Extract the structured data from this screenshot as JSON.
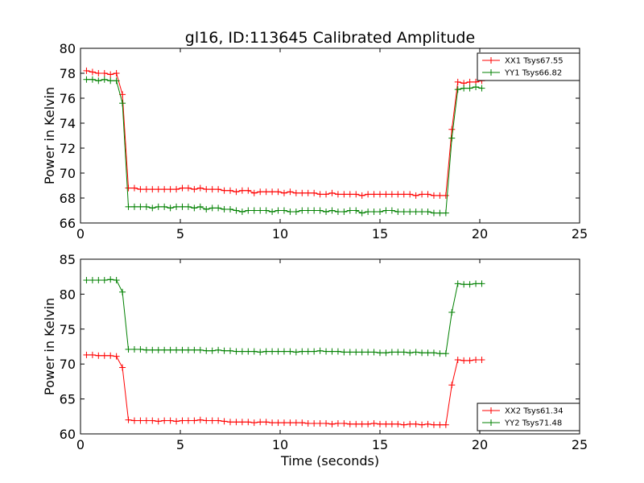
{
  "figure": {
    "title": "gl16, ID:113645 Calibrated Amplitude",
    "xlabel": "Time (seconds)"
  },
  "colors": {
    "red": "#ff0000",
    "green": "#008000"
  },
  "chart_data": [
    {
      "type": "line",
      "title": "gl16, ID:113645 Calibrated Amplitude",
      "xlabel": "",
      "ylabel": "Power in Kelvin",
      "xlim": [
        0,
        25
      ],
      "ylim": [
        66,
        80
      ],
      "xticks": [
        0,
        5,
        10,
        15,
        20,
        25
      ],
      "yticks": [
        66,
        68,
        70,
        72,
        74,
        76,
        78,
        80
      ],
      "grid": false,
      "legend_position": "top-right",
      "x": [
        0.3,
        0.6,
        0.9,
        1.2,
        1.5,
        1.8,
        2.1,
        2.4,
        2.7,
        3.0,
        3.3,
        3.6,
        3.9,
        4.2,
        4.5,
        4.8,
        5.1,
        5.4,
        5.7,
        6.0,
        6.3,
        6.6,
        6.9,
        7.2,
        7.5,
        7.8,
        8.1,
        8.4,
        8.7,
        9.0,
        9.3,
        9.6,
        9.9,
        10.2,
        10.5,
        10.8,
        11.1,
        11.4,
        11.7,
        12.0,
        12.3,
        12.6,
        12.9,
        13.2,
        13.5,
        13.8,
        14.1,
        14.4,
        14.7,
        15.0,
        15.3,
        15.6,
        15.9,
        16.2,
        16.5,
        16.8,
        17.1,
        17.4,
        17.7,
        18.0,
        18.3,
        18.6,
        18.9,
        19.2,
        19.5,
        19.8,
        20.1
      ],
      "series": [
        {
          "name": "XX1 Tsys67.55",
          "color": "#ff0000",
          "values": [
            78.2,
            78.1,
            78.0,
            78.0,
            77.9,
            78.0,
            76.3,
            68.8,
            68.8,
            68.7,
            68.7,
            68.7,
            68.7,
            68.7,
            68.7,
            68.7,
            68.8,
            68.8,
            68.7,
            68.8,
            68.7,
            68.7,
            68.7,
            68.6,
            68.6,
            68.5,
            68.6,
            68.6,
            68.4,
            68.5,
            68.5,
            68.5,
            68.5,
            68.4,
            68.5,
            68.4,
            68.4,
            68.4,
            68.4,
            68.3,
            68.3,
            68.4,
            68.3,
            68.3,
            68.3,
            68.3,
            68.2,
            68.3,
            68.3,
            68.3,
            68.3,
            68.3,
            68.3,
            68.3,
            68.3,
            68.2,
            68.3,
            68.3,
            68.2,
            68.2,
            68.2,
            73.5,
            77.3,
            77.2,
            77.3,
            77.3,
            77.4
          ]
        },
        {
          "name": "YY1 Tsys66.82",
          "color": "#008000",
          "values": [
            77.5,
            77.5,
            77.4,
            77.5,
            77.4,
            77.4,
            75.6,
            67.3,
            67.3,
            67.3,
            67.3,
            67.2,
            67.3,
            67.3,
            67.2,
            67.3,
            67.3,
            67.3,
            67.2,
            67.3,
            67.1,
            67.2,
            67.2,
            67.1,
            67.1,
            67.0,
            66.9,
            67.0,
            67.0,
            67.0,
            67.0,
            66.9,
            67.0,
            67.0,
            66.9,
            66.9,
            67.0,
            67.0,
            67.0,
            67.0,
            66.9,
            67.0,
            66.9,
            66.9,
            67.0,
            67.0,
            66.8,
            66.9,
            66.9,
            66.9,
            67.0,
            67.0,
            66.9,
            66.9,
            66.9,
            66.9,
            66.9,
            66.9,
            66.8,
            66.8,
            66.8,
            72.8,
            76.7,
            76.8,
            76.8,
            76.9,
            76.8
          ]
        }
      ]
    },
    {
      "type": "line",
      "title": "",
      "xlabel": "Time (seconds)",
      "ylabel": "Power in Kelvin",
      "xlim": [
        0,
        25
      ],
      "ylim": [
        60,
        85
      ],
      "xticks": [
        0,
        5,
        10,
        15,
        20,
        25
      ],
      "yticks": [
        60,
        65,
        70,
        75,
        80,
        85
      ],
      "grid": false,
      "legend_position": "bottom-right",
      "x": [
        0.3,
        0.6,
        0.9,
        1.2,
        1.5,
        1.8,
        2.1,
        2.4,
        2.7,
        3.0,
        3.3,
        3.6,
        3.9,
        4.2,
        4.5,
        4.8,
        5.1,
        5.4,
        5.7,
        6.0,
        6.3,
        6.6,
        6.9,
        7.2,
        7.5,
        7.8,
        8.1,
        8.4,
        8.7,
        9.0,
        9.3,
        9.6,
        9.9,
        10.2,
        10.5,
        10.8,
        11.1,
        11.4,
        11.7,
        12.0,
        12.3,
        12.6,
        12.9,
        13.2,
        13.5,
        13.8,
        14.1,
        14.4,
        14.7,
        15.0,
        15.3,
        15.6,
        15.9,
        16.2,
        16.5,
        16.8,
        17.1,
        17.4,
        17.7,
        18.0,
        18.3,
        18.6,
        18.9,
        19.2,
        19.5,
        19.8,
        20.1
      ],
      "series": [
        {
          "name": "XX2 Tsys61.34",
          "color": "#ff0000",
          "values": [
            71.3,
            71.3,
            71.2,
            71.2,
            71.2,
            71.1,
            69.5,
            62.0,
            61.9,
            61.9,
            61.9,
            61.9,
            61.8,
            61.9,
            61.9,
            61.8,
            61.9,
            61.9,
            61.9,
            62.0,
            61.9,
            61.9,
            61.9,
            61.8,
            61.7,
            61.7,
            61.7,
            61.7,
            61.6,
            61.7,
            61.7,
            61.6,
            61.6,
            61.6,
            61.6,
            61.6,
            61.6,
            61.5,
            61.5,
            61.5,
            61.5,
            61.4,
            61.5,
            61.5,
            61.4,
            61.4,
            61.4,
            61.4,
            61.5,
            61.4,
            61.4,
            61.4,
            61.4,
            61.3,
            61.4,
            61.4,
            61.3,
            61.4,
            61.3,
            61.3,
            61.3,
            67.0,
            70.6,
            70.5,
            70.5,
            70.6,
            70.6
          ]
        },
        {
          "name": "YY2 Tsys71.48",
          "color": "#008000",
          "values": [
            82.0,
            82.0,
            82.0,
            82.0,
            82.1,
            82.0,
            80.3,
            72.1,
            72.1,
            72.1,
            72.0,
            72.0,
            72.0,
            72.0,
            72.0,
            72.0,
            72.0,
            72.0,
            72.0,
            72.0,
            71.9,
            71.9,
            72.0,
            71.9,
            71.9,
            71.8,
            71.8,
            71.8,
            71.8,
            71.7,
            71.8,
            71.8,
            71.8,
            71.8,
            71.8,
            71.7,
            71.8,
            71.8,
            71.8,
            71.9,
            71.8,
            71.8,
            71.8,
            71.7,
            71.7,
            71.7,
            71.7,
            71.7,
            71.7,
            71.6,
            71.6,
            71.7,
            71.7,
            71.7,
            71.6,
            71.7,
            71.6,
            71.6,
            71.6,
            71.5,
            71.5,
            77.4,
            81.5,
            81.4,
            81.4,
            81.5,
            81.5
          ]
        }
      ]
    }
  ]
}
